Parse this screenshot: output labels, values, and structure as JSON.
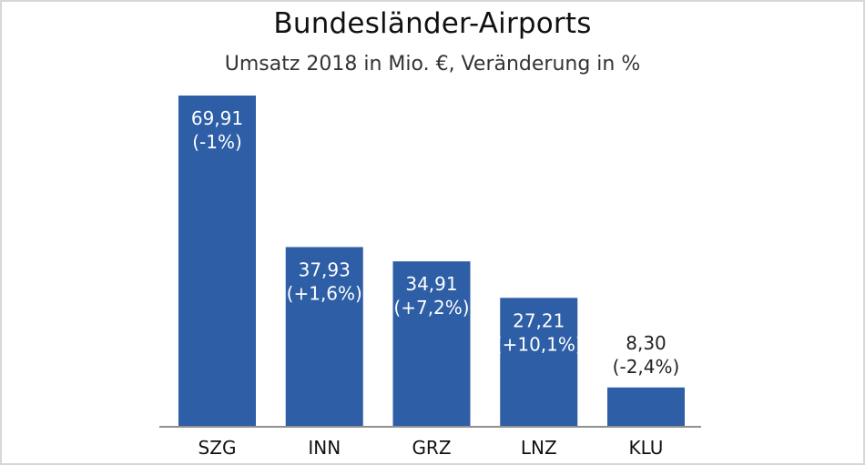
{
  "chart_data": {
    "type": "bar",
    "title": "Bundesländer-Airports",
    "subtitle": "Umsatz 2018 in Mio. €, Veränderung in %",
    "categories": [
      "SZG",
      "INN",
      "GRZ",
      "LNZ",
      "KLU"
    ],
    "values": [
      69.91,
      37.93,
      34.91,
      27.21,
      8.3
    ],
    "value_labels": [
      "69,91",
      "37,93",
      "34,91",
      "27,21",
      "8,30"
    ],
    "change_labels": [
      "(-1%)",
      "(+1,6%)",
      "(+7,2%)",
      "(+10,1%)",
      "(-2,4%)"
    ],
    "xlabel": "",
    "ylabel": "",
    "ylim": [
      0,
      69.91
    ],
    "grid": false,
    "legend": "none",
    "colors": {
      "bar": "#2d5ea6",
      "baseline": "#8f8f8f",
      "label_inside": "#ffffff",
      "label_outside": "#222222"
    }
  }
}
